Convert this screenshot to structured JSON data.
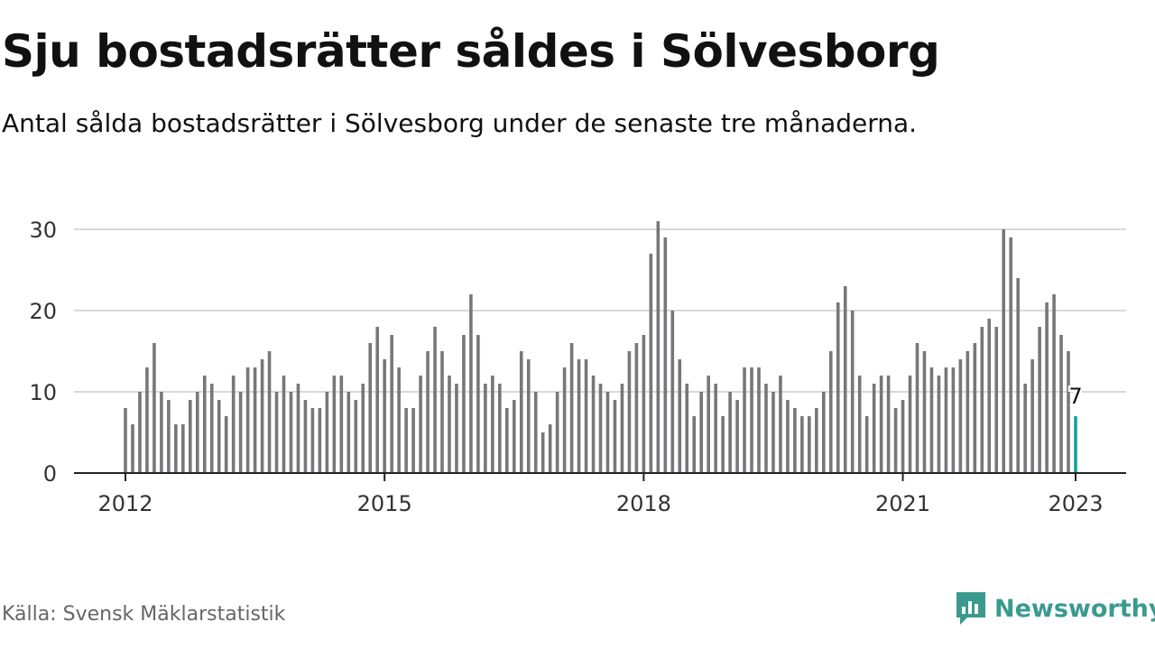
{
  "title": "Sju bostadsrätter såldes i Sölvesborg",
  "subtitle": "Antal sålda bostadsrätter i Sölvesborg under de senaste tre månaderna.",
  "source": "Källa: Svensk Mäklarstatistik",
  "brand": "Newsworthy",
  "colors": {
    "bar": "#77777b",
    "highlight": "#12a39a",
    "grid": "#d9d9d9",
    "axis": "#222222",
    "brand": "#3a9a8e"
  },
  "chart_data": {
    "type": "bar",
    "x_start": "2012-01",
    "x_end": "2023-01",
    "x_ticks": [
      "2012",
      "2015",
      "2018",
      "2021",
      "2023"
    ],
    "y_ticks": [
      "0",
      "10",
      "20",
      "30"
    ],
    "ylim": [
      0,
      32
    ],
    "grid": true,
    "values": [
      8,
      6,
      10,
      13,
      16,
      10,
      9,
      6,
      6,
      9,
      10,
      12,
      11,
      9,
      7,
      12,
      10,
      13,
      13,
      14,
      15,
      10,
      12,
      10,
      11,
      9,
      8,
      8,
      10,
      12,
      12,
      10,
      9,
      11,
      16,
      18,
      14,
      17,
      13,
      8,
      8,
      12,
      15,
      18,
      15,
      12,
      11,
      17,
      22,
      17,
      11,
      12,
      11,
      8,
      9,
      15,
      14,
      10,
      5,
      6,
      10,
      13,
      16,
      14,
      14,
      12,
      11,
      10,
      9,
      11,
      15,
      16,
      17,
      27,
      31,
      29,
      20,
      14,
      11,
      7,
      10,
      12,
      11,
      7,
      10,
      9,
      13,
      13,
      13,
      11,
      10,
      12,
      9,
      8,
      7,
      7,
      8,
      10,
      15,
      21,
      23,
      20,
      12,
      7,
      11,
      12,
      12,
      8,
      9,
      12,
      16,
      15,
      13,
      12,
      13,
      13,
      14,
      15,
      16,
      18,
      19,
      18,
      30,
      29,
      24,
      11,
      14,
      18,
      21,
      22,
      17,
      15,
      7
    ],
    "highlight_last": true,
    "annotation": "7"
  }
}
